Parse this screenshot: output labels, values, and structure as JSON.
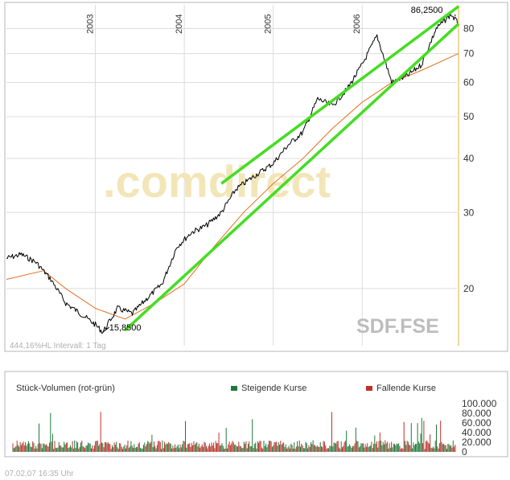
{
  "chart_data": [
    {
      "type": "line",
      "scale": "log",
      "x_range": [
        "2002-01",
        "2007-02"
      ],
      "ylim": [
        15,
        90
      ],
      "x_tick_labels": [
        "2003",
        "2004",
        "2005",
        "2006"
      ],
      "y_tick_labels": [
        "20",
        "30",
        "40",
        "50",
        "60",
        "70",
        "80"
      ],
      "y_tick_values": [
        20,
        30,
        40,
        50,
        60,
        70,
        80
      ],
      "watermark": ".comdirect",
      "symbol": "SDF.FSE",
      "footer_text": "444,16%HL  Intervall: 1 Tag",
      "annotations": [
        {
          "label": "86,2500",
          "date": "2007-01",
          "value": 86.25
        },
        {
          "label": "15,8500",
          "date": "2003-02",
          "value": 15.85
        }
      ],
      "series": [
        {
          "style": "black-price-line",
          "points": [
            [
              "2002-01",
              23.5
            ],
            [
              "2002-03",
              24.0
            ],
            [
              "2002-05",
              23.0
            ],
            [
              "2002-07",
              21.0
            ],
            [
              "2002-09",
              18.5
            ],
            [
              "2002-11",
              17.5
            ],
            [
              "2003-01",
              16.5
            ],
            [
              "2003-02",
              15.85
            ],
            [
              "2003-04",
              18.0
            ],
            [
              "2003-06",
              17.5
            ],
            [
              "2003-08",
              19.0
            ],
            [
              "2003-10",
              20.5
            ],
            [
              "2003-12",
              25.0
            ],
            [
              "2004-02",
              27.0
            ],
            [
              "2004-04",
              28.0
            ],
            [
              "2004-06",
              30.0
            ],
            [
              "2004-08",
              34.0
            ],
            [
              "2004-10",
              36.0
            ],
            [
              "2005-01",
              39.0
            ],
            [
              "2005-03",
              43.0
            ],
            [
              "2005-05",
              46.0
            ],
            [
              "2005-07",
              55.0
            ],
            [
              "2005-09",
              53.0
            ],
            [
              "2005-11",
              58.0
            ],
            [
              "2006-01",
              66.0
            ],
            [
              "2006-03",
              77.0
            ],
            [
              "2006-05",
              60.0
            ],
            [
              "2006-07",
              62.0
            ],
            [
              "2006-09",
              66.0
            ],
            [
              "2006-11",
              80.0
            ],
            [
              "2007-01",
              86.25
            ],
            [
              "2007-02",
              82.0
            ]
          ]
        },
        {
          "style": "orange-moving-average",
          "points": [
            [
              "2002-01",
              21.0
            ],
            [
              "2002-06",
              22.0
            ],
            [
              "2002-09",
              20.0
            ],
            [
              "2003-01",
              18.0
            ],
            [
              "2003-05",
              17.0
            ],
            [
              "2003-09",
              18.5
            ],
            [
              "2004-01",
              20.5
            ],
            [
              "2004-05",
              25.0
            ],
            [
              "2004-09",
              30.0
            ],
            [
              "2005-01",
              35.0
            ],
            [
              "2005-05",
              40.0
            ],
            [
              "2005-09",
              47.0
            ],
            [
              "2006-01",
              54.0
            ],
            [
              "2006-05",
              60.0
            ],
            [
              "2006-09",
              64.0
            ],
            [
              "2007-02",
              70.0
            ]
          ]
        },
        {
          "style": "green-upper-trend-channel",
          "points": [
            [
              "2004-06",
              35.0
            ],
            [
              "2007-02",
              90.0
            ]
          ]
        },
        {
          "style": "green-lower-trend-channel",
          "points": [
            [
              "2003-05",
              16.0
            ],
            [
              "2007-02",
              82.0
            ]
          ]
        }
      ]
    },
    {
      "type": "bar",
      "title": "Stück-Volumen (rot-grün)",
      "legend": [
        "Steigende Kurse",
        "Fallende Kurse"
      ],
      "legend_colors": [
        "#1f7a3a",
        "#c0302a"
      ],
      "ylim": [
        0,
        110000
      ],
      "y_tick_labels": [
        "0",
        "20.000",
        "40.000",
        "60.000",
        "80.000",
        "100.000"
      ],
      "y_tick_values": [
        0,
        20000,
        40000,
        60000,
        80000,
        100000
      ],
      "typical_daily_volume": 20000,
      "max_daily_volume": 85000
    }
  ],
  "footer": {
    "timestamp": "07.02.07   16:35 Uhr"
  },
  "colors": {
    "price": "#000000",
    "average": "#e07020",
    "trend": "#44dd22",
    "grid": "#dcdcdc",
    "frame": "#b4b4b4",
    "watermark": "#f2e6b8",
    "symbol": "#bdbdbd",
    "today": "#f0d89a"
  }
}
